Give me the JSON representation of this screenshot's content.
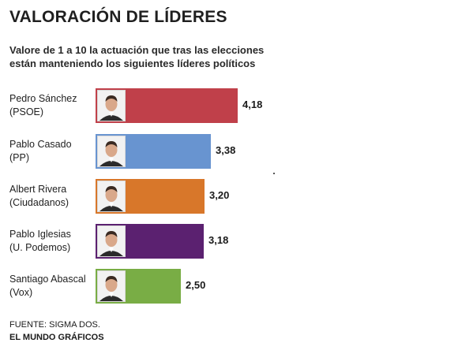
{
  "header": {
    "title": "VALORACIÓN DE LÍDERES",
    "subtitle": "Valore de 1 a 10 la actuación que tras las elecciones están manteniendo los siguientes líderes políticos"
  },
  "chart_data": {
    "type": "bar",
    "orientation": "horizontal",
    "categories": [
      "Pedro Sánchez (PSOE)",
      "Pablo Casado (PP)",
      "Albert Rivera (Ciudadanos)",
      "Pablo Iglesias (U. Podemos)",
      "Santiago Abascal (Vox)"
    ],
    "values": [
      4.18,
      3.38,
      3.2,
      3.18,
      2.5
    ],
    "value_labels": [
      "4,18",
      "3,38",
      "3,20",
      "3,18",
      "2,50"
    ],
    "colors": [
      "#c0404a",
      "#6894d0",
      "#d8772a",
      "#5b2170",
      "#79ad45"
    ],
    "xlim": [
      0,
      4.18
    ],
    "grid": false,
    "legend": "none",
    "rows": [
      {
        "name_line1": "Pedro Sánchez",
        "name_line2": "(PSOE)"
      },
      {
        "name_line1": "Pablo Casado",
        "name_line2": "(PP)"
      },
      {
        "name_line1": "Albert Rivera",
        "name_line2": "(Ciudadanos)"
      },
      {
        "name_line1": "Pablo Iglesias",
        "name_line2": "(U. Podemos)"
      },
      {
        "name_line1": "Santiago Abascal",
        "name_line2": "(Vox)"
      }
    ]
  },
  "footer": {
    "source": "FUENTE: SIGMA DOS.",
    "credit": "EL MUNDO GRÁFICOS"
  }
}
